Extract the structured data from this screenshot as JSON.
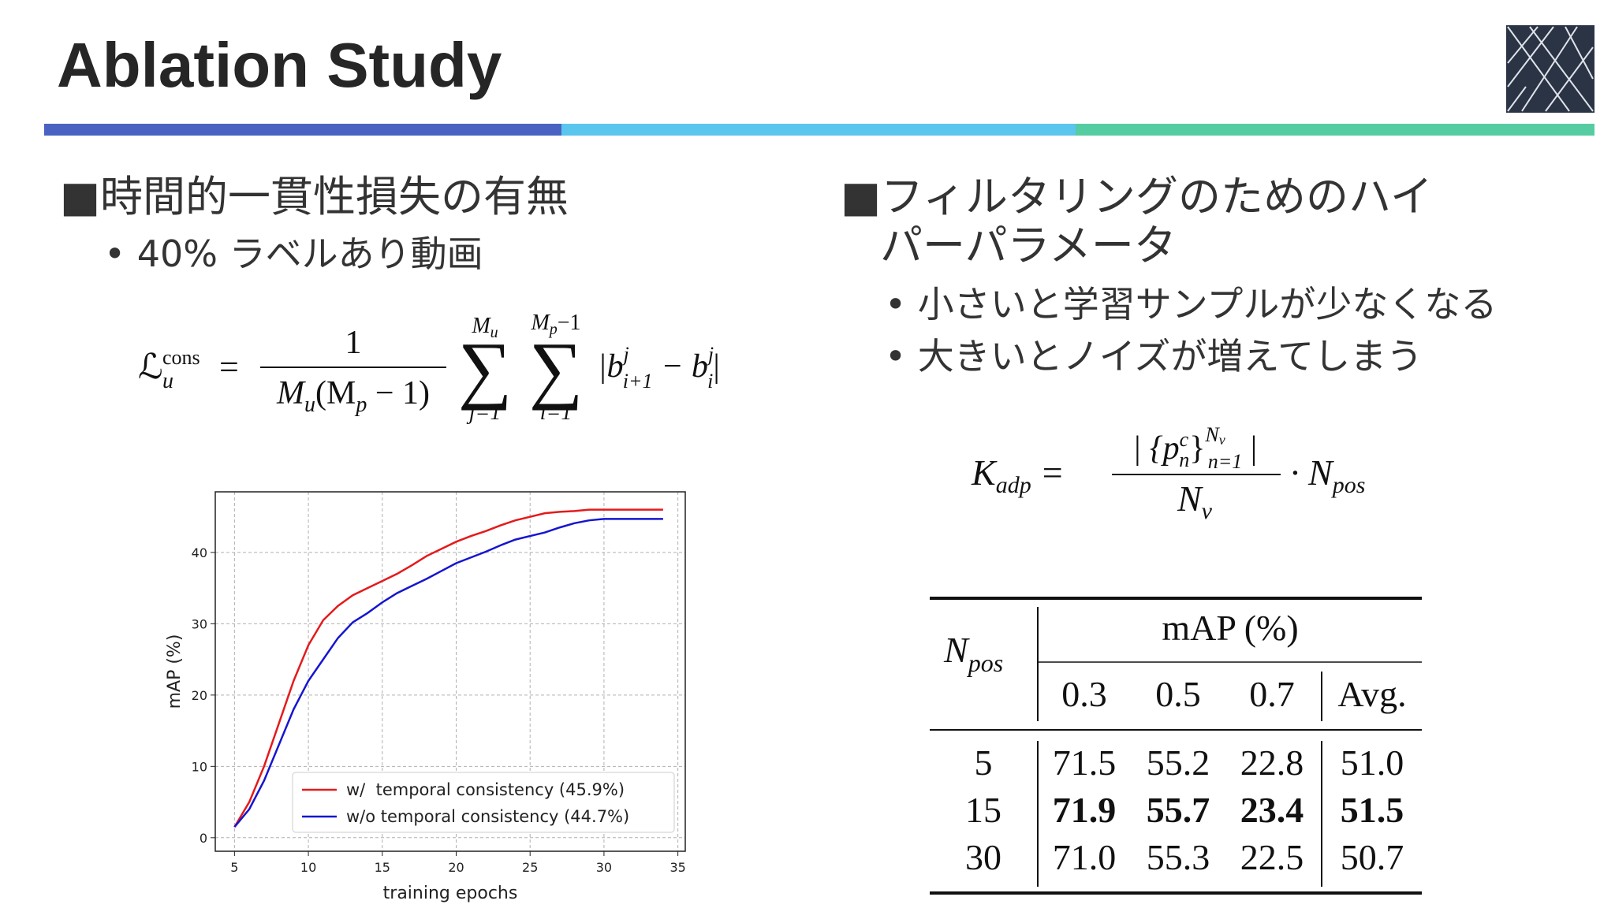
{
  "header": {
    "title": "Ablation Study"
  },
  "left": {
    "heading": "■時間的一貫性損失の有無",
    "bullet": "• 40% ラベルあり動画",
    "formula": {
      "lhs": "ℒ",
      "lhs_sup": "cons",
      "lhs_sub": "u",
      "eq": "=",
      "numerator": "1",
      "den_1": "M",
      "den_2": "u",
      "den_3": "(M",
      "den_4": "p",
      "den_5": " − 1)",
      "sum1": "∑",
      "sum1_top_1": "M",
      "sum1_top_2": "u",
      "sum1_bottom": "j=1",
      "sum2": "∑",
      "sum2_top_1": "M",
      "sum2_top_2": "p",
      "sum2_top_3": "−1",
      "sum2_bottom": "i=1",
      "abs_1": "|b",
      "abs_2": "j",
      "abs_3": "i+1",
      "abs_4": " − b",
      "abs_5": "j",
      "abs_6": "i",
      "abs_7": "|"
    }
  },
  "right": {
    "heading_1": "■フィルタリングのためのハイ",
    "heading_2": "パーパラメータ",
    "bullets": [
      "• 小さいと学習サンプルが少なくなる",
      "• 大きいとノイズが増えてしまう"
    ],
    "formula": {
      "lhs": "K",
      "lhs_sub": "adp",
      "eq": "=",
      "num_1": "| {p",
      "num_2": "c",
      "num_3": "n",
      "num_4": "}",
      "num_5": "N",
      "num_6": "v",
      "num_7": "n=1",
      "num_8": " |",
      "den_1": "N",
      "den_2": "v",
      "tail_1": "· N",
      "tail_2": "pos"
    }
  },
  "table": {
    "n": "N",
    "n_sub": "pos",
    "group": "mAP (%)",
    "columns": [
      "0.3",
      "0.5",
      "0.7",
      "Avg."
    ],
    "rows": [
      [
        "5",
        "71.5",
        "55.2",
        "22.8",
        "51.0"
      ],
      [
        "15",
        "71.9",
        "55.7",
        "23.4",
        "51.5"
      ],
      [
        "30",
        "71.0",
        "55.3",
        "22.5",
        "50.7"
      ]
    ],
    "bold_row": 1
  },
  "chart_data": {
    "type": "line",
    "x_label": "training epochs",
    "y_label": "mAP (%)",
    "x": [
      5,
      6,
      7,
      8,
      9,
      10,
      11,
      12,
      13,
      14,
      15,
      16,
      17,
      18,
      19,
      20,
      21,
      22,
      23,
      24,
      25,
      26,
      27,
      28,
      29,
      30,
      31,
      32,
      33,
      34
    ],
    "series": [
      {
        "name": "w/  temporal consistency (45.9%)",
        "color": "#e41a1c",
        "values": [
          1.5,
          5,
          10,
          16,
          22,
          27,
          30.5,
          32.5,
          34,
          35,
          36,
          37,
          38.2,
          39.5,
          40.5,
          41.5,
          42.3,
          43,
          43.8,
          44.5,
          45,
          45.5,
          45.7,
          45.8,
          46,
          46,
          46,
          46,
          46,
          46
        ]
      },
      {
        "name": "w/o temporal consistency (44.7%)",
        "color": "#1515d0",
        "values": [
          1.5,
          4,
          8,
          13,
          18,
          22,
          25,
          28,
          30.2,
          31.5,
          33,
          34.3,
          35.3,
          36.3,
          37.4,
          38.5,
          39.3,
          40.1,
          41,
          41.8,
          42.3,
          42.8,
          43.5,
          44.1,
          44.5,
          44.7,
          44.7,
          44.7,
          44.7,
          44.7
        ]
      }
    ],
    "xlim": [
      3.7,
      35.5
    ],
    "ylim": [
      -1.9,
      48.5
    ],
    "xticks": [
      5,
      10,
      15,
      20,
      25,
      30,
      35
    ],
    "yticks": [
      0,
      10,
      20,
      30,
      40
    ],
    "grid": true,
    "legend": "lower right"
  }
}
